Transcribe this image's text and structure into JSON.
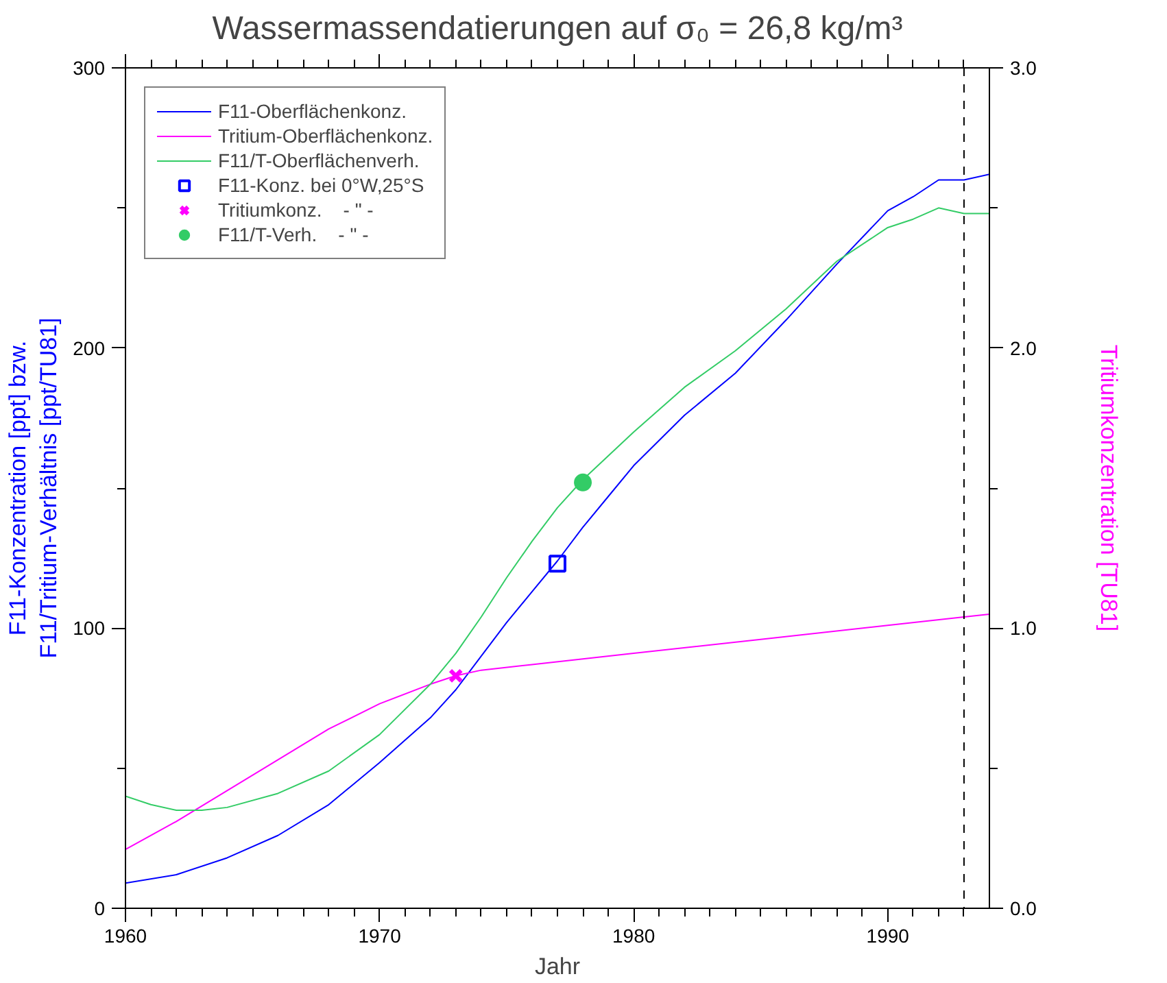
{
  "chart_data": {
    "type": "line",
    "title": "Wassermassendatierungen auf σ₀ = 26,8 kg/m³",
    "xlabel": "Jahr",
    "ylabel": "F11-Konzentration [ppt] bzw.\nF11/Tritium-Verhältnis [ppt/TU81]",
    "y2label": "Tritiumkonzentration [TU81]",
    "xlim": [
      1960,
      1994
    ],
    "ylim": [
      0,
      300
    ],
    "y2lim": [
      0,
      3
    ],
    "xticks": [
      1960,
      {
        "value": 1961,
        "label": null
      },
      {
        "value": 1962,
        "label": null
      },
      {
        "value": 1963,
        "label": null
      },
      {
        "value": 1964,
        "label": null
      },
      {
        "value": 1965,
        "label": null
      },
      {
        "value": 1966,
        "label": null
      },
      {
        "value": 1967,
        "label": null
      },
      {
        "value": 1968,
        "label": null
      },
      {
        "value": 1969,
        "label": null
      },
      1970,
      {
        "value": 1971,
        "label": null
      },
      {
        "value": 1972,
        "label": null
      },
      {
        "value": 1973,
        "label": null
      },
      {
        "value": 1974,
        "label": null
      },
      {
        "value": 1975,
        "label": null
      },
      {
        "value": 1976,
        "label": null
      },
      {
        "value": 1977,
        "label": null
      },
      {
        "value": 1978,
        "label": null
      },
      {
        "value": 1979,
        "label": null
      },
      1980,
      {
        "value": 1981,
        "label": null
      },
      {
        "value": 1982,
        "label": null
      },
      {
        "value": 1983,
        "label": null
      },
      {
        "value": 1984,
        "label": null
      },
      {
        "value": 1985,
        "label": null
      },
      {
        "value": 1986,
        "label": null
      },
      {
        "value": 1987,
        "label": null
      },
      {
        "value": 1988,
        "label": null
      },
      {
        "value": 1989,
        "label": null
      },
      1990,
      {
        "value": 1991,
        "label": null
      },
      {
        "value": 1992,
        "label": null
      },
      {
        "value": 1993,
        "label": null
      }
    ],
    "yticks": [
      0,
      {
        "value": 50,
        "label": null
      },
      100,
      {
        "value": 150,
        "label": null
      },
      200,
      {
        "value": 250,
        "label": null
      },
      300
    ],
    "y2ticks": [
      {
        "value": 0,
        "label": "0.0"
      },
      {
        "value": 0.5,
        "label": null
      },
      {
        "value": 1,
        "label": "1.0"
      },
      {
        "value": 1.5,
        "label": null
      },
      {
        "value": 2,
        "label": "2.0"
      },
      {
        "value": 2.5,
        "label": null
      },
      {
        "value": 3,
        "label": "3.0"
      }
    ],
    "grid": false,
    "legend": "top left",
    "line_style": "solid",
    "ref_lines": [
      {
        "axis": "x",
        "value": 1993,
        "line_style": "dashed",
        "color": "#000000"
      }
    ],
    "series": [
      {
        "name": "F11-Oberflächenkonz.",
        "color": "#0000ff",
        "x": [
          1960,
          1962,
          1964,
          1966,
          1968,
          1970,
          1972,
          1973,
          1974,
          1975,
          1976,
          1977,
          1978,
          1979,
          1980,
          1982,
          1984,
          1986,
          1988,
          1990,
          1991,
          1992,
          1993,
          1994
        ],
        "values": [
          9,
          12,
          18,
          26,
          37,
          52,
          68,
          78,
          90,
          102,
          113,
          124,
          136,
          147,
          158,
          176,
          191,
          210,
          230,
          249,
          254,
          260,
          260,
          262
        ]
      },
      {
        "name": "Tritium-Oberflächenkonz.",
        "color": "#ff00ff",
        "axis": "y2",
        "x": [
          1960,
          1962,
          1964,
          1966,
          1968,
          1970,
          1972,
          1973,
          1974,
          1976,
          1978,
          1980,
          1985,
          1990,
          1993,
          1994
        ],
        "values": [
          0.21,
          0.31,
          0.42,
          0.53,
          0.64,
          0.73,
          0.8,
          0.83,
          0.85,
          0.87,
          0.89,
          0.91,
          0.96,
          1.01,
          1.04,
          1.05
        ]
      },
      {
        "name": "F11/T-Oberflächenverh.",
        "color": "#33cc66",
        "x": [
          1960,
          1961,
          1962,
          1963,
          1964,
          1966,
          1968,
          1970,
          1972,
          1973,
          1974,
          1975,
          1976,
          1977,
          1978,
          1980,
          1982,
          1984,
          1986,
          1988,
          1990,
          1991,
          1992,
          1993,
          1994
        ],
        "values": [
          40,
          37,
          35,
          35,
          36,
          41,
          49,
          62,
          80,
          91,
          104,
          118,
          131,
          143,
          153,
          170,
          186,
          199,
          214,
          231,
          243,
          246,
          250,
          248,
          248
        ]
      },
      {
        "name": "F11-Konz. bei 0°W,25°S",
        "type": "scatter",
        "marker": "square",
        "color": "#0000ff",
        "x": [
          1977
        ],
        "values": [
          123
        ]
      },
      {
        "name": "Tritiumkonz.    - \" -",
        "type": "scatter",
        "marker": "cross",
        "color": "#ff00ff",
        "axis": "y2",
        "x": [
          1973
        ],
        "values": [
          0.83
        ]
      },
      {
        "name": "F11/T-Verh.    - \" -",
        "type": "scatter",
        "marker": "circle",
        "color": "#33cc66",
        "x": [
          1978
        ],
        "values": [
          152
        ]
      }
    ]
  }
}
